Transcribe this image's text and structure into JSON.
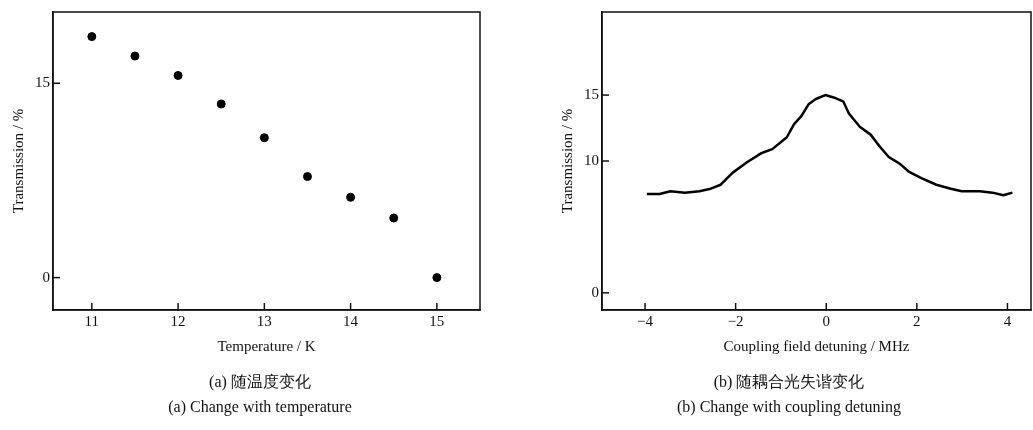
{
  "chart_data": [
    {
      "type": "scatter",
      "title": "(a) 随温度变化",
      "subtitle": "(a) Change with temperature",
      "xlabel": "Temperature / K",
      "ylabel": "Transmission / %",
      "x": [
        11,
        11.5,
        12,
        12.5,
        13,
        13.5,
        14,
        14.5,
        15
      ],
      "values": [
        18.6,
        17.1,
        15.6,
        13.4,
        10.8,
        7.8,
        6.2,
        4.6,
        0
      ],
      "color": "#000000",
      "marker": "circle",
      "xlim": [
        10.55,
        15.5
      ],
      "xticks": [
        11,
        12,
        13,
        14,
        15
      ],
      "ylim": [
        -2.5,
        20.5
      ],
      "yticks": [
        0,
        15
      ],
      "grid": false,
      "legend": false
    },
    {
      "type": "line",
      "title": "(b) 随耦合光失谐变化",
      "subtitle": "(b) Change with coupling detuning",
      "xlabel": "Coupling field detuning / MHz",
      "ylabel": "Transmission / %",
      "x": [
        -3.96,
        -3.68,
        -3.44,
        -3.12,
        -2.8,
        -2.55,
        -2.33,
        -2.07,
        -1.75,
        -1.43,
        -1.19,
        -0.87,
        -0.71,
        -0.55,
        -0.39,
        -0.23,
        -0.02,
        0.18,
        0.38,
        0.5,
        0.74,
        0.98,
        1.18,
        1.38,
        1.62,
        1.82,
        2.1,
        2.43,
        2.75,
        2.99,
        3.39,
        3.67,
        3.91,
        4.11
      ],
      "values": [
        7.5,
        7.5,
        7.7,
        7.6,
        7.7,
        7.9,
        8.2,
        9.1,
        9.9,
        10.6,
        10.9,
        11.8,
        12.8,
        13.4,
        14.3,
        14.7,
        15,
        14.8,
        14.5,
        13.6,
        12.6,
        12.0,
        11.1,
        10.3,
        9.8,
        9.2,
        8.7,
        8.2,
        7.9,
        7.7,
        7.7,
        7.6,
        7.4,
        7.6
      ],
      "color": "#000000",
      "marker": "none",
      "line_style": "solid",
      "xlim": [
        -4.95,
        4.52
      ],
      "xticks": [
        {
          "value": -4,
          "label": "−4"
        },
        {
          "value": -2,
          "label": "−2"
        },
        0,
        2,
        4
      ],
      "ylim": [
        -1.3,
        21.3
      ],
      "yticks": [
        0,
        10,
        15
      ],
      "grid": false,
      "legend": false
    }
  ]
}
